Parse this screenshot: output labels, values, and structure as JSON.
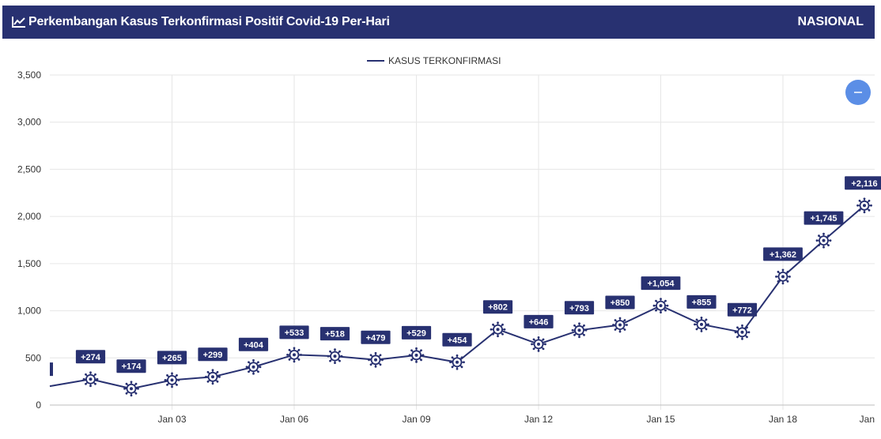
{
  "header": {
    "title": "Perkembangan Kasus Terkonfirmasi Positif Covid-19 Per-Hari",
    "region": "NASIONAL",
    "icon": "line-chart-icon"
  },
  "colors": {
    "header_bg": "#283171",
    "series": "#283171",
    "zoom_button": "#5b8ee6"
  },
  "zoom_button": {
    "icon": "minus-icon"
  },
  "chart_data": {
    "type": "line",
    "legend": "KASUS TERKONFIRMASI",
    "legend_position": "top-center",
    "grid": true,
    "ylim": [
      0,
      3500
    ],
    "y_ticks": [
      0,
      500,
      1000,
      1500,
      2000,
      2500,
      3000,
      3500
    ],
    "y_tick_labels": [
      "0",
      "500",
      "1,000",
      "1,500",
      "2,000",
      "2,500",
      "3,000",
      "3,500"
    ],
    "x_tick_labels": [
      "Jan 03",
      "Jan 06",
      "Jan 09",
      "Jan 12",
      "Jan 15",
      "Jan 18",
      "Jan"
    ],
    "x": [
      "Dec 31",
      "Jan 01",
      "Jan 02",
      "Jan 03",
      "Jan 04",
      "Jan 05",
      "Jan 06",
      "Jan 07",
      "Jan 08",
      "Jan 09",
      "Jan 10",
      "Jan 11",
      "Jan 12",
      "Jan 13",
      "Jan 14",
      "Jan 15",
      "Jan 16",
      "Jan 17",
      "Jan 18",
      "Jan 19",
      "Jan 20"
    ],
    "series": [
      {
        "name": "KASUS TERKONFIRMASI",
        "values": [
          200,
          274,
          174,
          265,
          299,
          404,
          533,
          518,
          479,
          529,
          454,
          802,
          646,
          793,
          850,
          1054,
          855,
          772,
          1362,
          1745,
          2116
        ],
        "labels": [
          "",
          "+274",
          "+174",
          "+265",
          "+299",
          "+404",
          "+533",
          "+518",
          "+479",
          "+529",
          "+454",
          "+802",
          "+646",
          "+793",
          "+850",
          "+1,054",
          "+855",
          "+772",
          "+1,362",
          "+1,745",
          "+2,116"
        ]
      }
    ]
  }
}
